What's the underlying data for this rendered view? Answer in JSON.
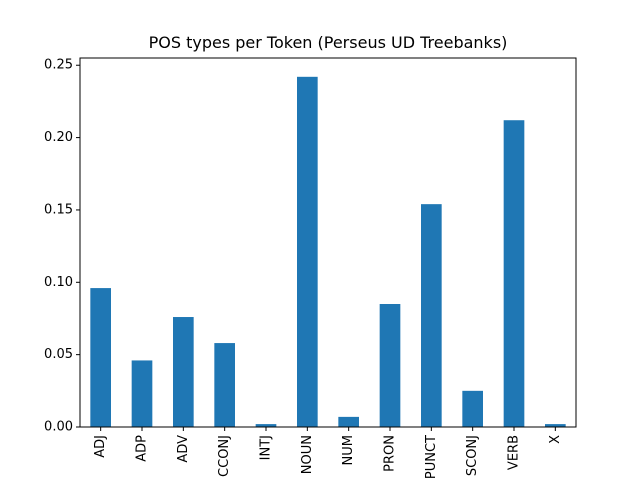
{
  "chart_data": {
    "type": "bar",
    "title": "POS types per Token (Perseus UD Treebanks)",
    "xlabel": "",
    "ylabel": "",
    "categories": [
      "ADJ",
      "ADP",
      "ADV",
      "CCONJ",
      "INTJ",
      "NOUN",
      "NUM",
      "PRON",
      "PUNCT",
      "SCONJ",
      "VERB",
      "X"
    ],
    "values": [
      0.096,
      0.046,
      0.076,
      0.058,
      0.002,
      0.242,
      0.007,
      0.085,
      0.154,
      0.025,
      0.212,
      0.002
    ],
    "ylim": [
      0,
      0.255
    ],
    "yticks": [
      0.0,
      0.05,
      0.1,
      0.15,
      0.2,
      0.25
    ],
    "ytick_labels": [
      "0.00",
      "0.05",
      "0.10",
      "0.15",
      "0.20",
      "0.25"
    ],
    "grid": false,
    "legend": "none",
    "bar_color": "#1f77b4"
  }
}
